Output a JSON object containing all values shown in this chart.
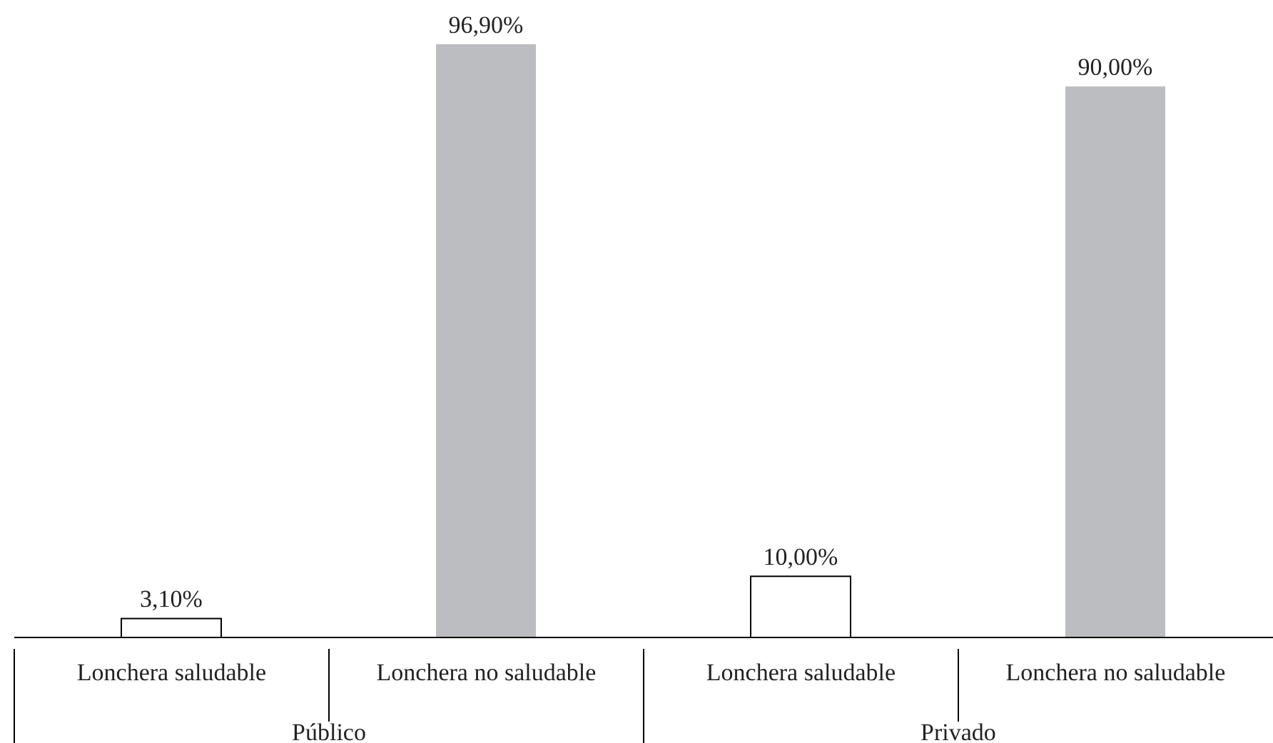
{
  "chart_data": {
    "type": "bar",
    "categories": [
      "Lonchera saludable",
      "Lonchera no saludable",
      "Lonchera saludable",
      "Lonchera no saludable"
    ],
    "values": [
      3.1,
      96.9,
      10,
      90
    ],
    "colors": [
      "#ffffff",
      "#bcbdc0",
      "#ffffff",
      "#bcbdc0"
    ],
    "value_labels": [
      "3,10%",
      "96,90%",
      "10,00%",
      "90,00%"
    ],
    "annotations": [
      "Público",
      "Privado"
    ]
  }
}
